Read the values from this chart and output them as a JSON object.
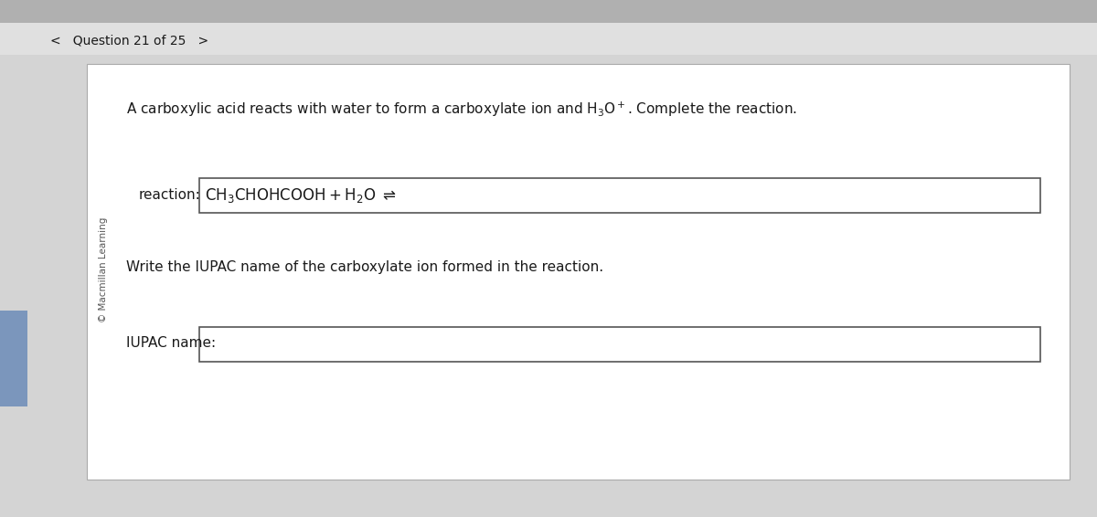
{
  "bg_top_bar_color": "#c8c8c8",
  "bg_nav_color": "#e8e8e8",
  "bg_main_color": "#d8d8d8",
  "card_color": "#ffffff",
  "nav_text": "<   Question 21 of 25   >",
  "nav_fontsize": 10,
  "copyright_text": "© Macmillan Learning",
  "reaction_label": "reaction:",
  "write_text": "Write the IUPAC name of the carboxylate ion formed in the reaction.",
  "iupac_label": "IUPAC name:",
  "font_color": "#1a1a1a",
  "box_border_color": "#555555",
  "sidebar_color": "#7b96bc",
  "sidebar_color2": "#8090b0"
}
